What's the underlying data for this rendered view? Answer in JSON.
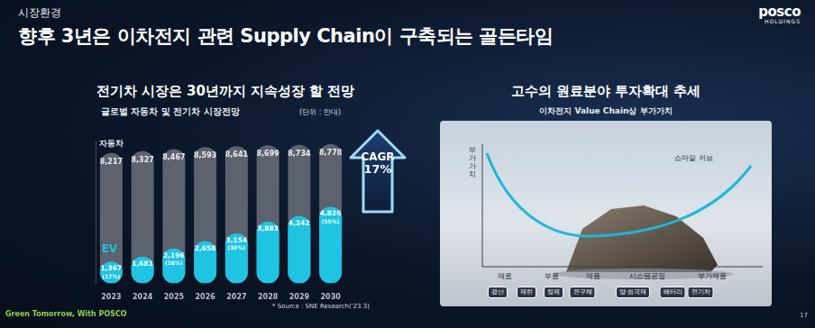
{
  "header": {
    "section": "시장환경",
    "title": "향후 3년은 이차전지 관련 Supply Chain이 구축되는 골든타임",
    "logo": [
      "posco",
      "HOLDINGS"
    ]
  },
  "footer": {
    "slogan": "Green Tomorrow, With POSCO",
    "page": "17"
  },
  "chart_data": [
    {
      "type": "bar",
      "heading": "전기차 시장은 30년까지 지속성장 할 전망",
      "title": "글로벌 자동차 및 전기차 시장전망",
      "unit": "(단위 : 만대)",
      "source": "* Source : SNE Research('23.3)",
      "categories": [
        "2023",
        "2024",
        "2025",
        "2026",
        "2027",
        "2028",
        "2029",
        "2030"
      ],
      "series": [
        {
          "name": "자동차",
          "color": "#5c636e",
          "values": [
            8217,
            8327,
            8467,
            8593,
            8641,
            8699,
            8734,
            8778
          ],
          "value_labels": [
            "8,217",
            "8,327",
            "8,467",
            "8,593",
            "8,641",
            "8,699",
            "8,734",
            "8,778"
          ]
        },
        {
          "name": "EV",
          "color": "#1ec4e2",
          "values": [
            1367,
            1681,
            2196,
            2658,
            3154,
            3883,
            4242,
            4826
          ],
          "value_labels": [
            "1,367",
            "1,681",
            "2,196",
            "2,658",
            "3,154",
            "3,883",
            "4,242",
            "4,826"
          ],
          "share_labels": [
            "(17%)",
            null,
            "(26%)",
            null,
            "(36%)",
            null,
            null,
            "(55%)"
          ]
        }
      ],
      "ylim": [
        0,
        9000
      ],
      "stacked": false,
      "grid": false,
      "tick_labels": "x",
      "data_labels": true,
      "annotations": [
        "CAGR",
        "17%"
      ]
    }
  ],
  "diagram": {
    "heading": "고수의 원료분야 투자확대 추세",
    "subtitle": "이차전지 Value Chain상 부가가치",
    "y_label": "부가가치",
    "curve_label": "스마일 커브",
    "stages": [
      "재료",
      "부품",
      "제품",
      "시스템공정",
      "부가제품"
    ],
    "chain": [
      "광산",
      "제련",
      "정제",
      "전구체",
      "양·음극재",
      "배터리",
      "전기차"
    ]
  }
}
